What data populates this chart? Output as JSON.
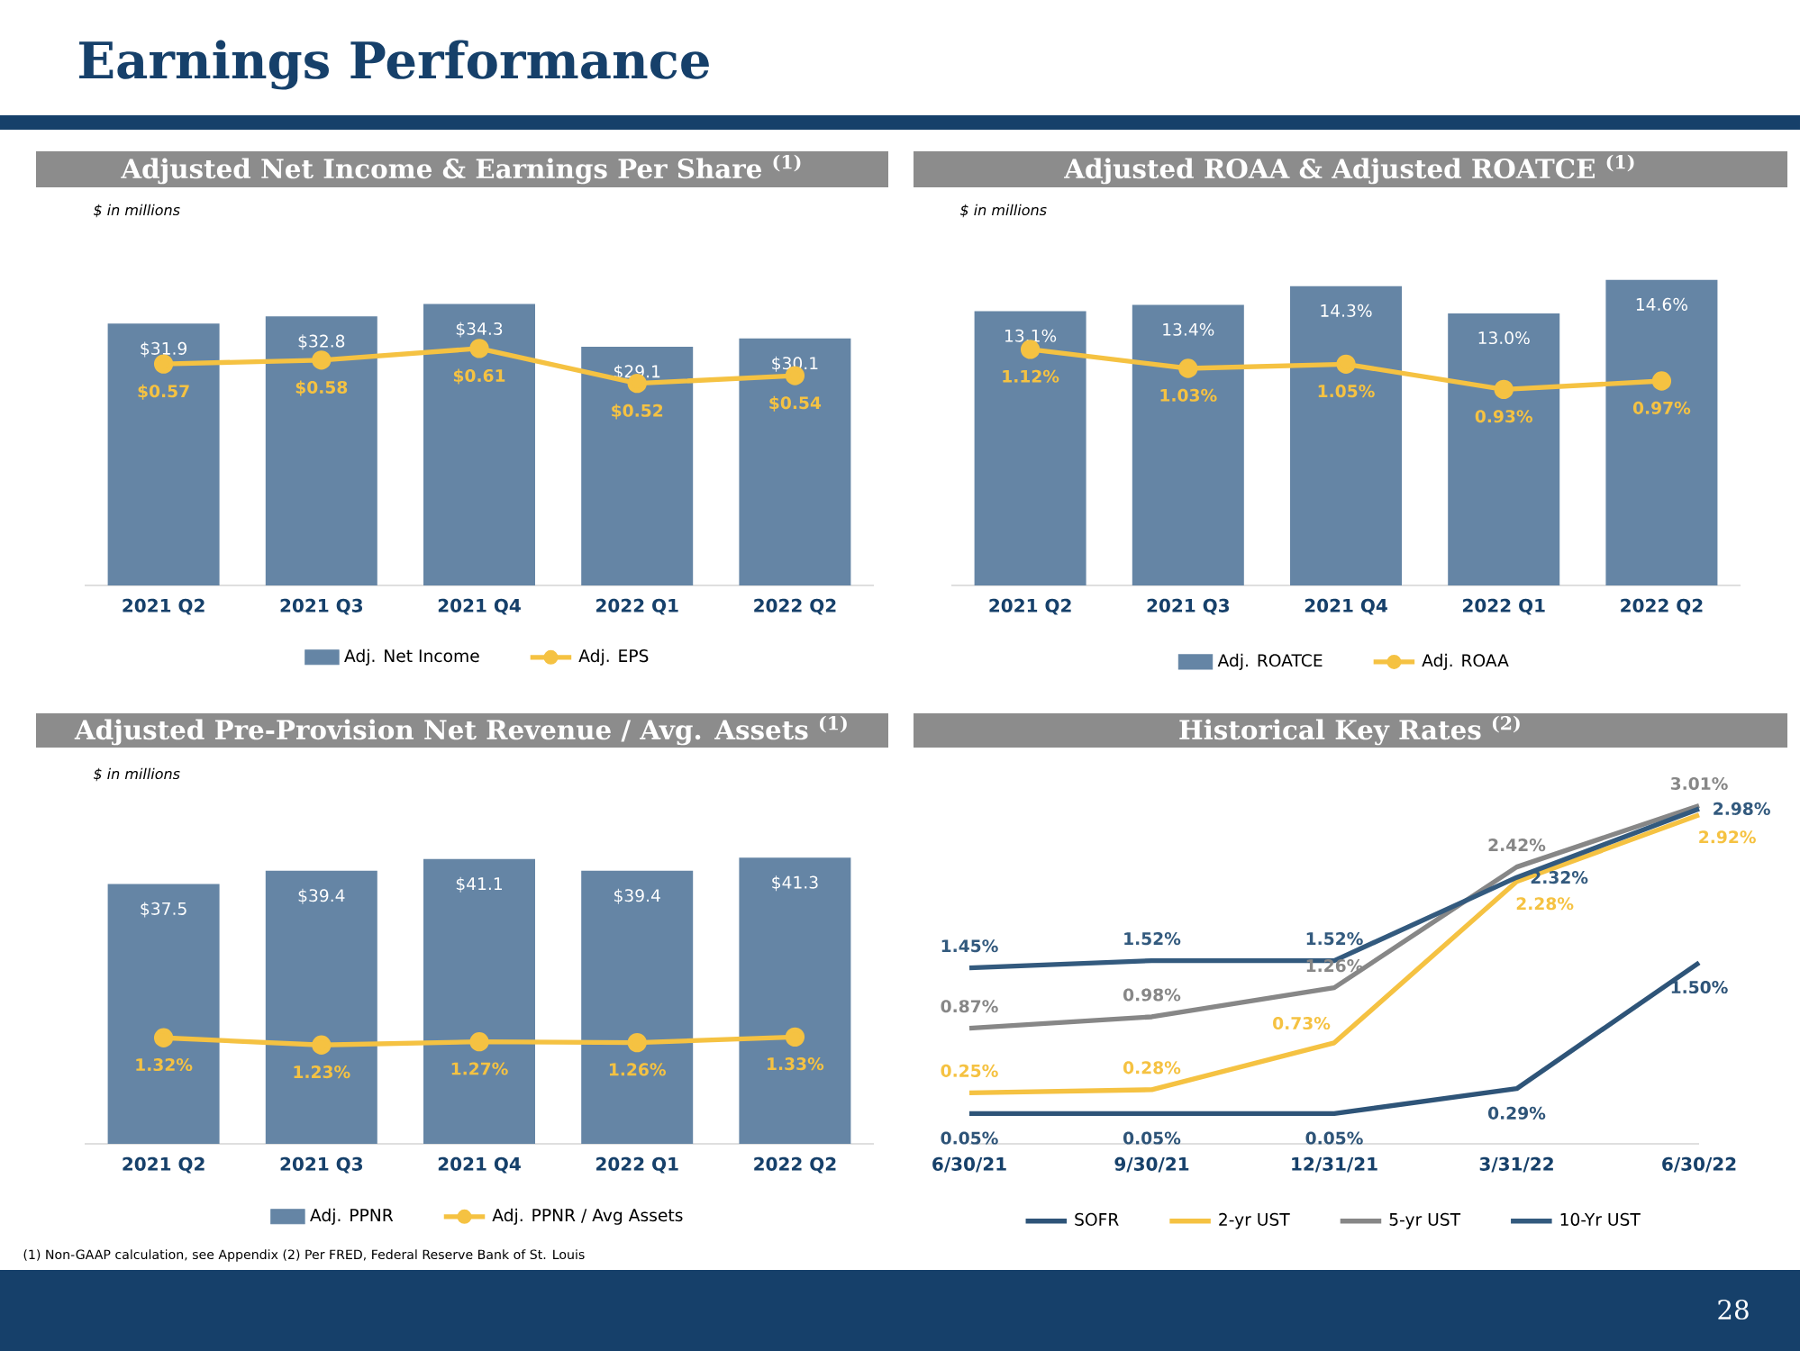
{
  "chart_data": [
    {
      "type": "bar",
      "title": "Adjusted Net Income & Earnings Per Share $^{(1)}$",
      "subtitle": "$ in millions",
      "categories": [
        "2021 Q2",
        "2021 Q3",
        "2021 Q4",
        "2022 Q1",
        "2022 Q2"
      ],
      "legend": "bottom",
      "marker": "circle",
      "annotations": [
        "Earnings Performance",
        "(1) Non-GAAP calculation, see Appendix  (2) Per FRED, Federal Reserve Bank of St. Louis",
        "28"
      ],
      "series": [
        {
          "name": "Adj. Net Income",
          "type": "bar",
          "color": "#6585a5",
          "values": [
            31.9,
            32.8,
            34.3,
            29.1,
            30.1
          ],
          "value_labels": [
            "$31.9",
            "$32.8",
            "$34.3",
            "$29.1",
            "$30.1"
          ]
        },
        {
          "name": "Adj. EPS",
          "type": "line",
          "axis": "y2",
          "color": "#f5c242",
          "values": [
            0.57,
            0.58,
            0.61,
            0.52,
            0.54
          ],
          "value_labels": [
            "$0.57",
            "$0.58",
            "$0.61",
            "$0.52",
            "$0.54"
          ]
        }
      ]
    },
    {
      "type": "bar",
      "title": "Adjusted ROAA & Adjusted ROATCE $^{(1)}$",
      "subtitle": "$ in millions",
      "categories": [
        "2021 Q2",
        "2021 Q3",
        "2021 Q4",
        "2022 Q1",
        "2022 Q2"
      ],
      "legend": "bottom",
      "marker": "circle",
      "series": [
        {
          "name": "Adj. ROATCE",
          "type": "bar",
          "color": "#6585a5",
          "values": [
            13.1,
            13.4,
            14.3,
            13.0,
            14.6
          ],
          "value_labels": [
            "13.1%",
            "13.4%",
            "14.3%",
            "13.0%",
            "14.6%"
          ]
        },
        {
          "name": "Adj. ROAA",
          "type": "line",
          "axis": "y2",
          "color": "#f5c242",
          "values": [
            1.12,
            1.03,
            1.05,
            0.93,
            0.97
          ],
          "value_labels": [
            "1.12%",
            "1.03%",
            "1.05%",
            "0.93%",
            "0.97%"
          ]
        }
      ]
    },
    {
      "type": "bar",
      "title": "Adjusted Pre-Provision Net Revenue / Avg. Assets $^{(1)}$",
      "subtitle": "$ in millions",
      "categories": [
        "2021 Q2",
        "2021 Q3",
        "2021 Q4",
        "2022 Q1",
        "2022 Q2"
      ],
      "legend": "bottom",
      "marker": "circle",
      "series": [
        {
          "name": "Adj. PPNR",
          "type": "bar",
          "color": "#6585a5",
          "values": [
            37.5,
            39.4,
            41.1,
            39.4,
            41.3
          ],
          "value_labels": [
            "$37.5",
            "$39.4",
            "$41.1",
            "$39.4",
            "$41.3"
          ]
        },
        {
          "name": "Adj. PPNR / Avg Assets",
          "type": "line",
          "axis": "y2",
          "color": "#f5c242",
          "values": [
            1.32,
            1.23,
            1.27,
            1.26,
            1.33
          ],
          "value_labels": [
            "1.32%",
            "1.23%",
            "1.27%",
            "1.26%",
            "1.33%"
          ]
        }
      ]
    },
    {
      "type": "line",
      "title": "Historical Key Rates $^{(2)}$",
      "categories": [
        "6/30/21",
        "9/30/21",
        "12/31/21",
        "3/31/22",
        "6/30/22"
      ],
      "legend": "bottom",
      "series": [
        {
          "name": "SOFR",
          "color": "#2e5478",
          "values": [
            0.05,
            0.05,
            0.05,
            0.29,
            1.5
          ],
          "value_labels": [
            "0.05%",
            "0.05%",
            "0.05%",
            "0.29%",
            "1.50%"
          ]
        },
        {
          "name": "2-yr UST",
          "color": "#f5c242",
          "values": [
            0.25,
            0.28,
            0.73,
            2.28,
            2.92
          ],
          "value_labels": [
            "0.25%",
            "0.28%",
            "0.73%",
            "2.28%",
            "2.92%"
          ]
        },
        {
          "name": "5-yr UST",
          "color": "#878787",
          "values": [
            0.87,
            0.98,
            1.26,
            2.42,
            3.01
          ],
          "value_labels": [
            "0.87%",
            "0.98%",
            "1.26%",
            "2.42%",
            "3.01%"
          ]
        },
        {
          "name": "10-Yr UST",
          "color": "#335a7e",
          "values": [
            1.45,
            1.52,
            1.52,
            2.32,
            2.98
          ],
          "value_labels": [
            "1.45%",
            "1.52%",
            "1.52%",
            "2.32%",
            "2.98%"
          ]
        }
      ]
    }
  ]
}
